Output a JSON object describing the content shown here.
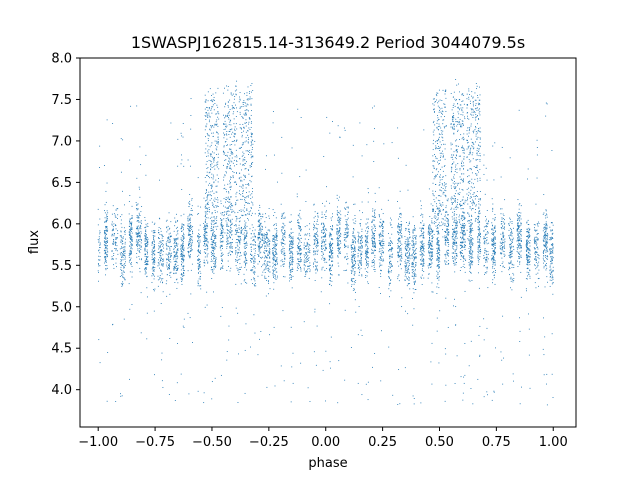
{
  "chart_data": {
    "type": "scatter",
    "title": "1SWASPJ162815.14-313649.2 Period 3044079.5s",
    "xlabel": "phase",
    "ylabel": "flux",
    "xlim": [
      -1.08,
      1.1
    ],
    "ylim": [
      3.55,
      8.0
    ],
    "xticks": [
      -1.0,
      -0.75,
      -0.5,
      -0.25,
      0.0,
      0.25,
      0.5,
      0.75,
      1.0
    ],
    "xtick_labels": [
      "−1.00",
      "−0.75",
      "−0.50",
      "−0.25",
      "0.00",
      "0.25",
      "0.50",
      "0.75",
      "1.00"
    ],
    "yticks": [
      4.0,
      4.5,
      5.0,
      5.5,
      6.0,
      6.5,
      7.0,
      7.5,
      8.0
    ],
    "ytick_labels": [
      "4.0",
      "4.5",
      "5.0",
      "5.5",
      "6.0",
      "6.5",
      "7.0",
      "7.5",
      "8.0"
    ],
    "grid": false,
    "marker_color": "#1f77b4",
    "series": [
      {
        "phase_range": [
          -1.0,
          1.0
        ],
        "flux_baseline_mean": 5.75,
        "flux_baseline_spread": 0.35,
        "flux_min": 3.8,
        "flux_max": 7.75,
        "flare_phases": [
          -0.5,
          -0.42,
          -0.35,
          0.5,
          0.58,
          0.65
        ],
        "flare_flux_peak": 7.6
      }
    ]
  }
}
